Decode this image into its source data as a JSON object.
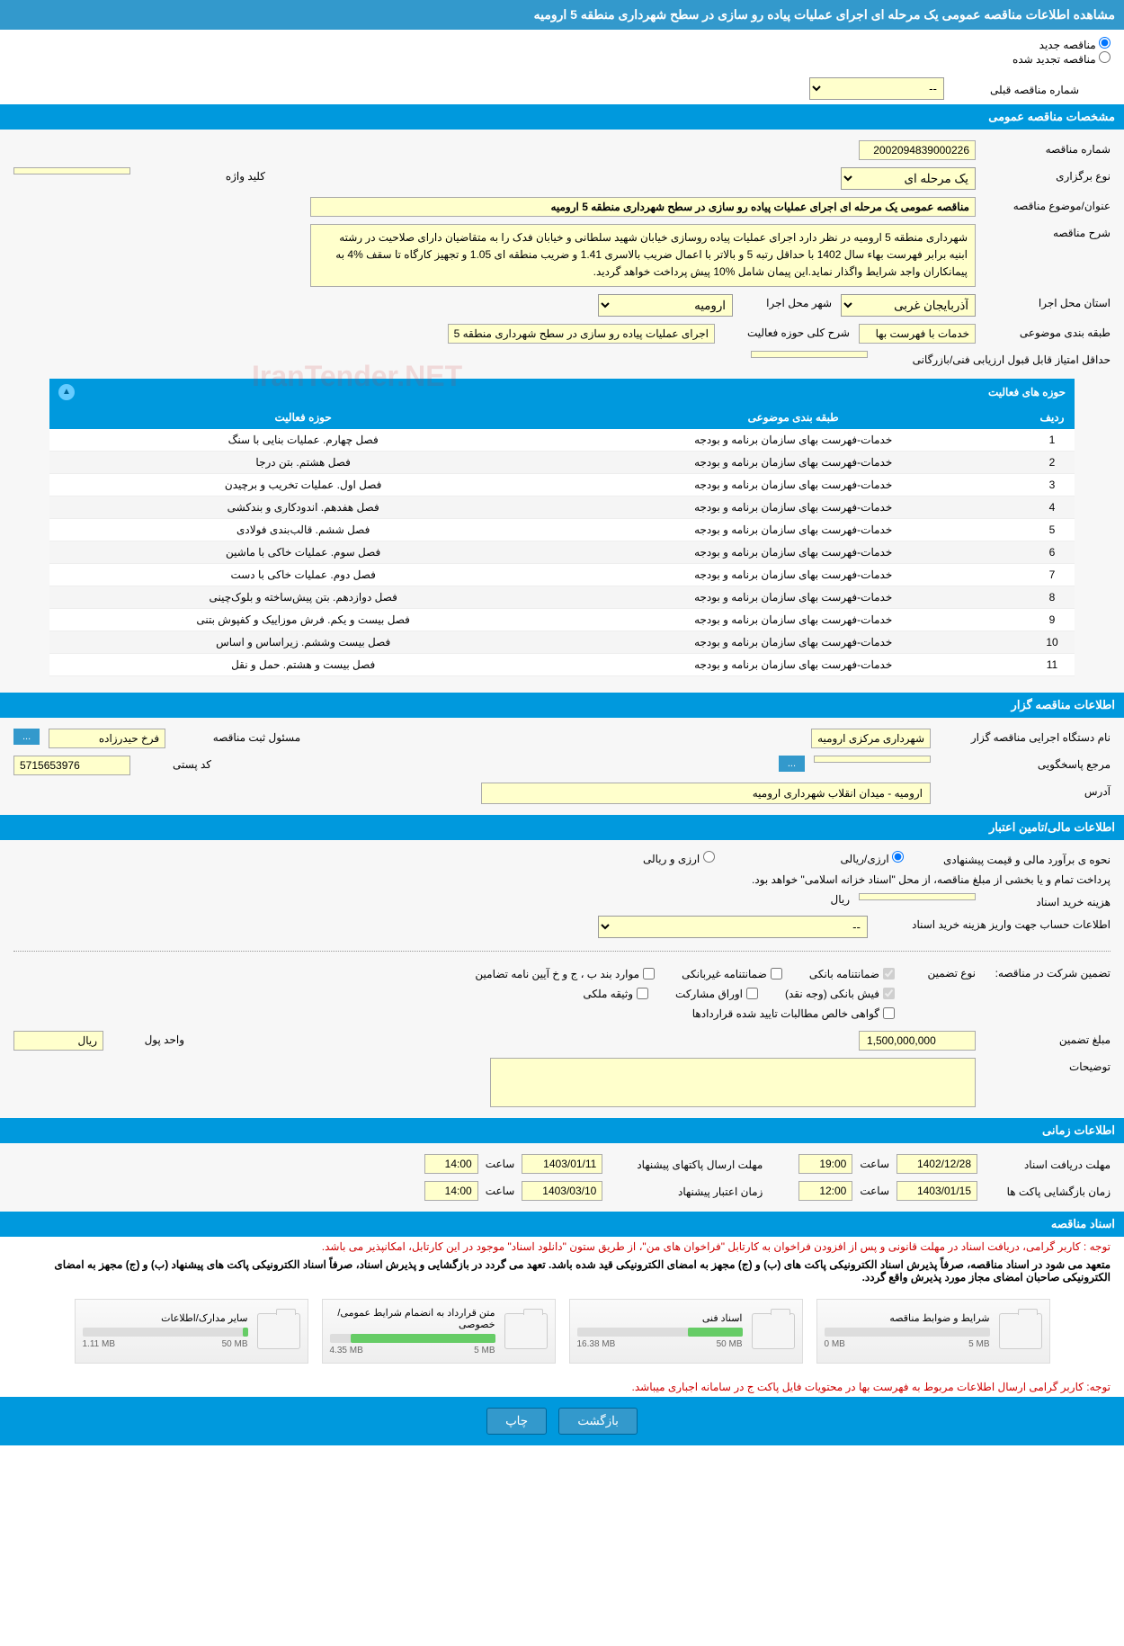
{
  "page_title": "مشاهده اطلاعات مناقصه عمومی یک مرحله ای اجرای عملیات پیاده رو سازی در سطح شهرداری منطقه 5 ارومیه",
  "radios": {
    "new_tender": "مناقصه جدید",
    "renewed_tender": "مناقصه تجدید شده"
  },
  "prev_number_label": "شماره مناقصه قبلی",
  "prev_number_value": "--",
  "sections": {
    "general": "مشخصات مناقصه عمومی",
    "organizer": "اطلاعات مناقصه گزار",
    "financial": "اطلاعات مالی/تامین اعتبار",
    "time": "اطلاعات زمانی",
    "docs": "اسناد مناقصه"
  },
  "general": {
    "tender_no_label": "شماره مناقصه",
    "tender_no": "2002094839000226",
    "type_label": "نوع برگزاری",
    "type_value": "یک مرحله ای",
    "keyword_label": "کلید واژه",
    "keyword_value": "",
    "title_label": "عنوان/موضوع مناقصه",
    "title_value": "مناقصه عمومی یک مرحله ای اجرای عملیات پیاده رو سازی در سطح شهرداری منطقه 5 ارومیه",
    "desc_label": "شرح مناقصه",
    "desc_value": "شهرداری منطقه 5 ارومیه در نظر دارد اجرای عملیات پیاده روسازی خیابان شهید سلطانی و خیابان فدک را به متقاضیان دارای صلاحیت در رشته ابنیه برابر فهرست بهاء سال 1402 با حداقل رتبه 5 و بالاتر  با اعمال ضریب بالاسری 1.41 و ضریب منطقه ای 1.05 و تجهیز کارگاه تا سقف %4 به پیمانکاران واجد شرایط واگذار نماید.این پیمان شامل %10 پیش پرداخت خواهد گردید.",
    "province_label": "استان محل اجرا",
    "province_value": "آذربایجان غربی",
    "city_label": "شهر محل اجرا",
    "city_value": "ارومیه",
    "category_label": "طبقه بندی موضوعی",
    "category_value": "خدمات با فهرست بها",
    "activity_desc_label": "شرح کلی حوزه فعالیت",
    "activity_desc_value": "اجرای عملیات پیاده رو سازی در سطح شهرداری منطقه 5",
    "min_score_label": "حداقل امتیاز قابل قبول ارزیابی فنی/بازرگانی",
    "min_score_value": ""
  },
  "activity_panel": {
    "title": "حوزه های فعالیت",
    "col_row": "ردیف",
    "col_category": "طبقه بندی موضوعی",
    "col_activity": "حوزه فعالیت",
    "rows": [
      {
        "n": "1",
        "cat": "خدمات-فهرست بهای سازمان برنامه و بودجه",
        "act": "فصل چهارم. عملیات بنایی با سنگ"
      },
      {
        "n": "2",
        "cat": "خدمات-فهرست بهای سازمان برنامه و بودجه",
        "act": "فصل هشتم. بتن درجا"
      },
      {
        "n": "3",
        "cat": "خدمات-فهرست بهای سازمان برنامه و بودجه",
        "act": "فصل اول. عملیات تخریب و برچیدن"
      },
      {
        "n": "4",
        "cat": "خدمات-فهرست بهای سازمان برنامه و بودجه",
        "act": "فصل هفدهم. اندودکاری و بندکشی"
      },
      {
        "n": "5",
        "cat": "خدمات-فهرست بهای سازمان برنامه و بودجه",
        "act": "فصل ششم. قالب‌بندی فولادی"
      },
      {
        "n": "6",
        "cat": "خدمات-فهرست بهای سازمان برنامه و بودجه",
        "act": "فصل سوم. عملیات خاکی با ماشین"
      },
      {
        "n": "7",
        "cat": "خدمات-فهرست بهای سازمان برنامه و بودجه",
        "act": "فصل دوم. عملیات خاکی با دست"
      },
      {
        "n": "8",
        "cat": "خدمات-فهرست بهای سازمان برنامه و بودجه",
        "act": "فصل دوازدهم. بتن پیش‌ساخته و بلوک‌چینی"
      },
      {
        "n": "9",
        "cat": "خدمات-فهرست بهای سازمان برنامه و بودجه",
        "act": "فصل بیست و یکم. فرش موزاییک و کفپوش بتنی"
      },
      {
        "n": "10",
        "cat": "خدمات-فهرست بهای سازمان برنامه و بودجه",
        "act": "فصل بیست وششم. زیراساس و اساس"
      },
      {
        "n": "11",
        "cat": "خدمات-فهرست بهای سازمان برنامه و بودجه",
        "act": "فصل بیست و هشتم. حمل و نقل"
      }
    ]
  },
  "organizer": {
    "exec_label": "نام دستگاه اجرایی مناقصه گزار",
    "exec_value": "شهرداری مرکزی ارومیه",
    "registrar_label": "مسئول ثبت مناقصه",
    "registrar_value": "فرخ حیدرزاده",
    "response_label": "مرجع پاسخگویی",
    "response_btn": "...",
    "postal_label": "کد پستی",
    "postal_value": "5715653976",
    "address_label": "آدرس",
    "address_value": "ارومیه - میدان انقلاب شهرداری ارومیه",
    "more_btn": "..."
  },
  "financial": {
    "estimate_label": "نحوه ی برآورد مالی و قیمت پیشنهادی",
    "opt_currency": "ارزی/ریالی",
    "opt_rial": "ارزی و ریالی",
    "payment_note": "پرداخت تمام و یا بخشی از مبلغ مناقصه، از محل \"اسناد خزانه اسلامی\" خواهد بود.",
    "purchase_label": "هزینه خرید اسناد",
    "purchase_value": "",
    "currency_unit": "ریال",
    "account_label": "اطلاعات حساب جهت واریز هزینه خرید اسناد",
    "account_value": "--",
    "guarantee_header": "تضمین شرکت در مناقصه:",
    "guarantee_type_label": "نوع تضمین",
    "g_bank": "ضمانتنامه بانکی",
    "g_nonbank": "ضمانتنامه غیربانکی",
    "g_regs": "موارد بند ب ، ج و خ آیین نامه تضامین",
    "g_cash": "فیش بانکی (وجه نقد)",
    "g_bonds": "اوراق مشارکت",
    "g_property": "وثیقه ملکی",
    "g_receivables": "گواهی خالص مطالبات تایید شده قراردادها",
    "guarantee_amount_label": "مبلغ تضمین",
    "guarantee_amount": "1,500,000,000",
    "unit_label": "واحد پول",
    "unit_value": "ریال",
    "notes_label": "توضیحات"
  },
  "time": {
    "receive_deadline_label": "مهلت دریافت اسناد",
    "receive_date": "1402/12/28",
    "receive_time_label": "ساعت",
    "receive_time": "19:00",
    "send_deadline_label": "مهلت ارسال پاکتهای پیشنهاد",
    "send_date": "1403/01/11",
    "send_time": "14:00",
    "open_label": "زمان بازگشایی پاکت ها",
    "open_date": "1403/01/15",
    "open_time": "12:00",
    "validity_label": "زمان اعتبار پیشنهاد",
    "validity_date": "1403/03/10",
    "validity_time": "14:00"
  },
  "docs": {
    "note1": "توجه : کاربر گرامی، دریافت اسناد در مهلت قانونی و پس از افزودن فراخوان به کارتابل \"فراخوان های من\"، از طریق ستون \"دانلود اسناد\" موجود در این کارتابل، امکانپذیر می باشد.",
    "note2": "متعهد می شود در اسناد مناقصه، صرفاً پذیرش اسناد الکترونیکی پاکت های (ب) و (ج) مجهز به امضای الکترونیکی قید شده باشد. تعهد می گردد در بازگشایی و پذیرش اسناد، صرفاً اسناد الکترونیکی پاکت های پیشنهاد (ب) و (ج) مجهز به امضای الکترونیکی صاحبان امضای مجاز مورد پذیرش واقع گردد.",
    "note3": "توجه: کاربر گرامی ارسال اطلاعات مربوط به فهرست بها در محتویات فایل پاکت ج در سامانه اجباری میباشد.",
    "cards": [
      {
        "title": "شرایط و ضوابط مناقصه",
        "used": "0 MB",
        "total": "5 MB",
        "pct": 0
      },
      {
        "title": "اسناد فنی",
        "used": "16.38 MB",
        "total": "50 MB",
        "pct": 33
      },
      {
        "title": "متن قرارداد به انضمام شرایط عمومی/خصوصی",
        "used": "4.35 MB",
        "total": "5 MB",
        "pct": 87
      },
      {
        "title": "سایر مدارک/اطلاعات",
        "used": "1.11 MB",
        "total": "50 MB",
        "pct": 3
      }
    ]
  },
  "footer": {
    "back": "بازگشت",
    "print": "چاپ"
  },
  "watermark": "IranTender.NET",
  "colors": {
    "header_bg": "#3399cc",
    "section_bg": "#0099dd",
    "field_bg": "#ffffcc",
    "progress_fill": "#66cc66"
  }
}
